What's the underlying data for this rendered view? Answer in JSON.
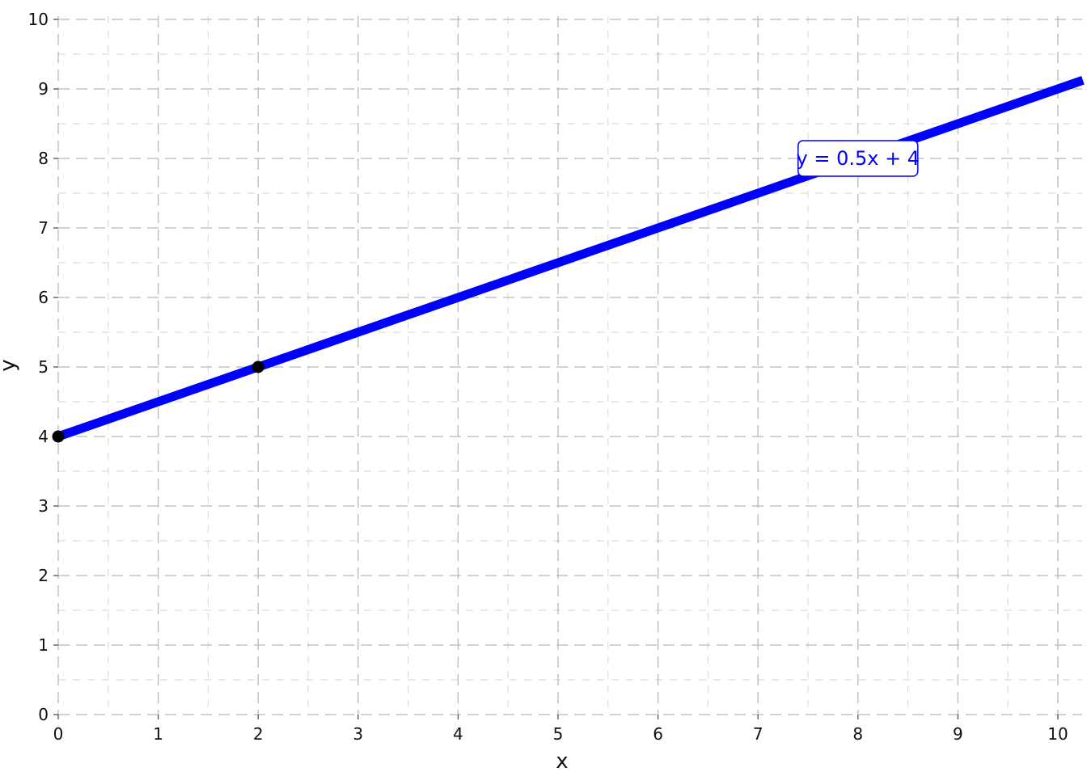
{
  "chart_data": {
    "type": "line",
    "xlabel": "x",
    "ylabel": "y",
    "xlim": [
      0,
      10.25
    ],
    "ylim": [
      0,
      10
    ],
    "x_ticks": [
      0,
      1,
      2,
      3,
      4,
      5,
      6,
      7,
      8,
      9,
      10
    ],
    "y_ticks": [
      0,
      1,
      2,
      3,
      4,
      5,
      6,
      7,
      8,
      9,
      10
    ],
    "grid": "on, dashed, major and minor",
    "series": [
      {
        "slope": 0.5,
        "intercept": 4,
        "color": "#0000ff"
      }
    ],
    "points": [
      {
        "x": 0,
        "y": 4
      },
      {
        "x": 2,
        "y": 5
      }
    ],
    "annotations": [
      {
        "text": "y = 0.5x + 4",
        "x": 8,
        "y": 8,
        "color": "#0000ff"
      }
    ]
  }
}
